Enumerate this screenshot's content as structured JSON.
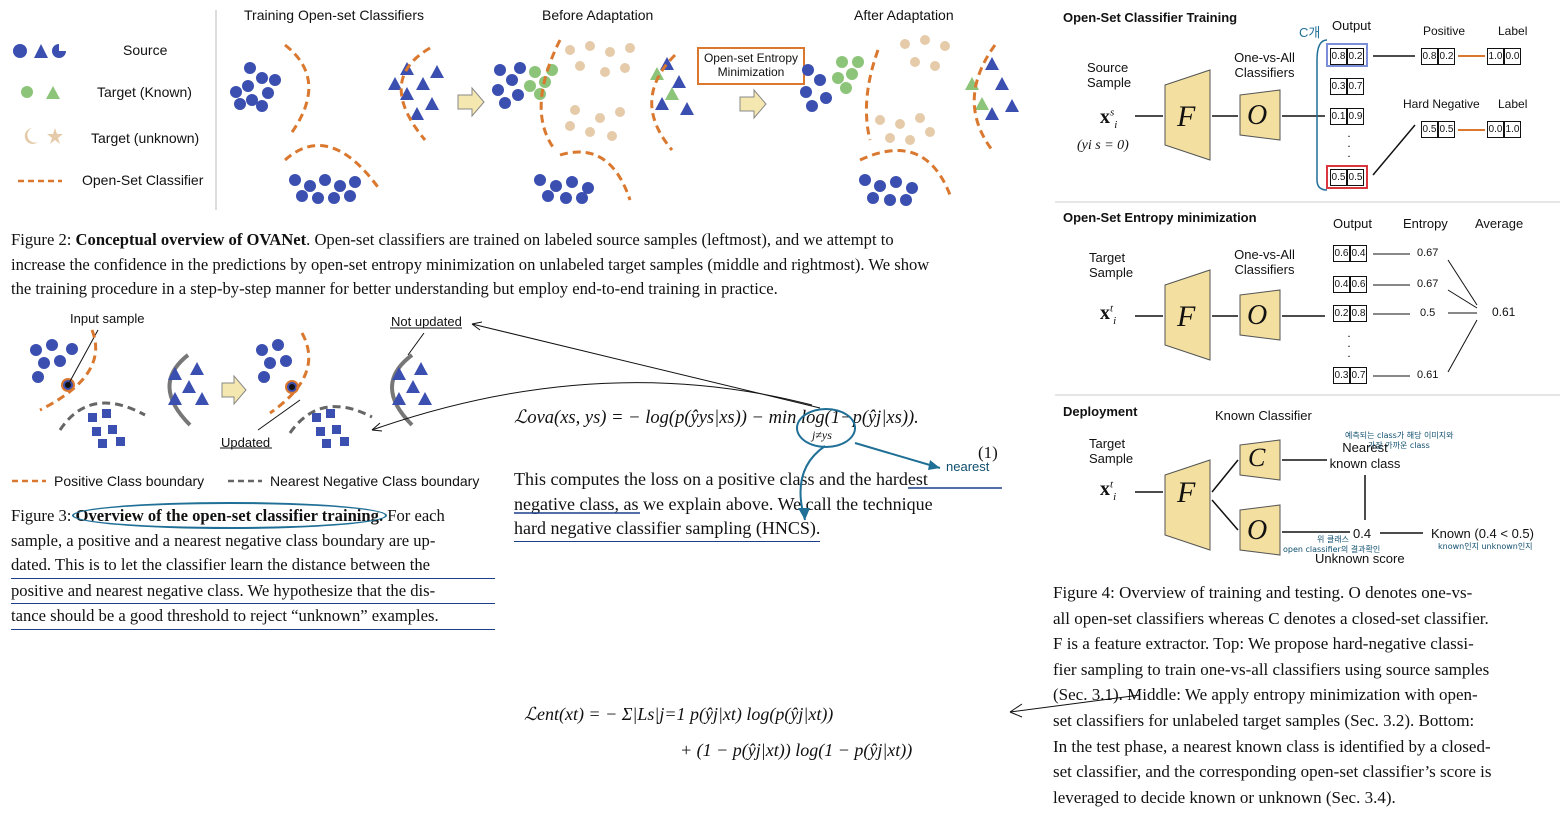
{
  "fig2": {
    "panel_titles": [
      "Training Open-set Classifiers",
      "Before Adaptation",
      "After Adaptation"
    ],
    "legend": [
      "Source",
      "Target (Known)",
      "Target (unknown)",
      "Open-Set Classifier"
    ],
    "box_label": "Open-set Entropy Minimization",
    "caption_label": "Figure 2:",
    "caption_bold": "Conceptual overview of OVANet",
    "caption_lines": [
      ". Open-set classifiers are trained on labeled source samples (leftmost), and we attempt to",
      "increase the confidence in the predictions by open-set entropy minimization on unlabeled target samples (middle and rightmost). We show",
      "the training procedure in a step-by-step manner for better understanding but employ end-to-end training in practice."
    ]
  },
  "fig3": {
    "labels": {
      "input_sample": "Input sample",
      "not_updated": "Not updated",
      "updated": "Updated"
    },
    "legend": [
      "Positive Class boundary",
      "Nearest Negative Class boundary"
    ],
    "caption_label": "Figure 3:",
    "caption_bold": "Overview of the open-set classifier training.",
    "caption_rest": [
      "For each",
      "sample, a positive and a nearest negative class boundary are up-",
      "dated.  This is to let the classifier learn the distance between the",
      "positive and nearest negative class.  We hypothesize that the dis-",
      "tance should be a good threshold to reject “unknown” examples."
    ]
  },
  "eq1": {
    "lhs": "ℒova(xs, ys) = − log(p(ŷys|xs)) − min log(1−p(ŷj|xs)).",
    "sub": "j≠ys",
    "number": "(1)",
    "annotation": "nearest",
    "text_lines": [
      "This computes the loss on a positive class and the hardest",
      "negative class, as we explain above.  We call the technique",
      "hard negative classifier sampling (HNCS)."
    ]
  },
  "eq2": {
    "line1": "ℒent(xt) = −  Σ|Ls|j=1  p(ŷj|xt) log(p(ŷj|xt))",
    "line2": "+    (1 − p(ŷj|xt)) log(1 − p(ŷj|xt))"
  },
  "fig4": {
    "sections": [
      "Open-Set Classifier Training",
      "Open-Set Entropy minimization",
      "Deployment"
    ],
    "top": {
      "c_label": "C개",
      "output": "Output",
      "positive": "Positive",
      "label": "Label",
      "hard_negative": "Hard Negative",
      "label2": "Label",
      "source_sample": "Source Sample",
      "ova": "One-vs-All Classifiers",
      "x": "x",
      "yi": "(yi s = 0)",
      "outputs": [
        [
          "0.8",
          "0.2"
        ],
        [
          "0.3",
          "0.7"
        ],
        [
          "0.1",
          "0.9"
        ],
        [
          "0.5",
          "0.5"
        ]
      ],
      "pos_out": [
        "0.8",
        "0.2"
      ],
      "pos_label": [
        "1.0",
        "0.0"
      ],
      "neg_out": [
        "0.5",
        "0.5"
      ],
      "neg_label": [
        "0.0",
        "1.0"
      ]
    },
    "middle": {
      "target_sample": "Target Sample",
      "ova": "One-vs-All Classifiers",
      "output": "Output",
      "entropy": "Entropy",
      "average": "Average",
      "outputs": [
        [
          "0.6",
          "0.4"
        ],
        [
          "0.4",
          "0.6"
        ],
        [
          "0.2",
          "0.8"
        ],
        [
          "0.3",
          "0.7"
        ]
      ],
      "entropies": [
        "0.67",
        "0.67",
        "0.5",
        "0.61"
      ],
      "avg": "0.61"
    },
    "bottom": {
      "known_classifier": "Known Classifier",
      "target_sample": "Target Sample",
      "nearest": "Nearest known class",
      "score": "0.4",
      "result": "Known (0.4 < 0.5)",
      "unknown_score": "Unknown score",
      "kor1": "예측되는 class가 해당 이미지와",
      "kor2": "가장 가까운 class",
      "kor3": "위 클래스",
      "kor4": "open classifier의 결과확인",
      "kor5": "known인지 unknown인지"
    },
    "caption_lines": [
      "Figure 4: Overview of training and testing. O denotes one-vs-",
      "all open-set classifiers whereas C denotes a closed-set classifier.",
      "F is a feature extractor. Top: We propose hard-negative classi-",
      "fier sampling to train one-vs-all classifiers using source samples",
      "(Sec. 3.1). Middle: We apply entropy minimization with open-",
      "set classifiers for unlabeled target samples (Sec. 3.2). Bottom:",
      "In the test phase, a nearest known class is identified by a closed-",
      "set classifier, and the corresponding open-set classifier’s score is",
      "leveraged to decide known or unknown (Sec. 3.4)."
    ]
  }
}
